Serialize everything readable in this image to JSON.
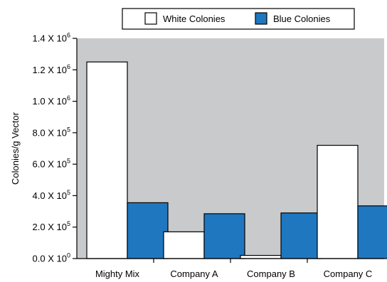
{
  "chart_data": {
    "type": "bar",
    "categories": [
      "Mighty Mix",
      "Company A",
      "Company B",
      "Company C"
    ],
    "series": [
      {
        "name": "White Colonies",
        "color": "#ffffff",
        "values": [
          1250000,
          170000,
          20000,
          720000
        ]
      },
      {
        "name": "Blue Colonies",
        "color": "#1f77c0",
        "values": [
          355000,
          285000,
          290000,
          335000
        ]
      }
    ],
    "ylabel": "Colonies/g Vector",
    "xlabel": "",
    "ylim": [
      0,
      1400000
    ],
    "yticks": [
      {
        "mantissa": "0.0",
        "exp": "0"
      },
      {
        "mantissa": "2.0",
        "exp": "5"
      },
      {
        "mantissa": "4.0",
        "exp": "5"
      },
      {
        "mantissa": "6.0",
        "exp": "5"
      },
      {
        "mantissa": "8.0",
        "exp": "5"
      },
      {
        "mantissa": "1.0",
        "exp": "6"
      },
      {
        "mantissa": "1.2",
        "exp": "6"
      },
      {
        "mantissa": "1.4",
        "exp": "6"
      }
    ],
    "tick_base": "X 10",
    "plot_background": "#c8cacb",
    "legend_position": "top"
  }
}
